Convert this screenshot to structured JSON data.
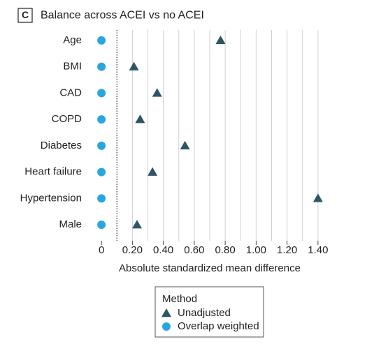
{
  "chart_data": {
    "type": "dot",
    "panel_label": "C",
    "title": "Balance across ACEI vs no ACEI",
    "categories": [
      "Age",
      "BMI",
      "CAD",
      "COPD",
      "Diabetes",
      "Heart failure",
      "Hypertension",
      "Male"
    ],
    "series": [
      {
        "name": "Unadjusted",
        "marker": "triangle",
        "color": "#2e5566",
        "values": [
          0.77,
          0.21,
          0.36,
          0.25,
          0.54,
          0.33,
          1.4,
          0.23
        ]
      },
      {
        "name": "Overlap weighted",
        "marker": "circle",
        "color": "#2aa6de",
        "values": [
          0,
          0,
          0,
          0,
          0,
          0,
          0,
          0
        ]
      }
    ],
    "xlabel": "Absolute standardized mean difference",
    "xlim": [
      -0.1,
      1.5
    ],
    "xticks": [
      0,
      {
        "value": 0.2,
        "label": "0.20"
      },
      {
        "value": 0.4,
        "label": "0.40"
      },
      {
        "value": 0.6,
        "label": "0.60"
      },
      {
        "value": 0.8,
        "label": "0.80"
      },
      {
        "value": 1.0,
        "label": "1.00"
      },
      {
        "value": 1.2,
        "label": "1.20"
      },
      {
        "value": 1.4,
        "label": "1.40"
      }
    ],
    "xminorticks": [
      0.3,
      0.5,
      0.7,
      0.9,
      1.1,
      1.3
    ],
    "reference_line": 0.1,
    "grid": true,
    "legend_title": "Method",
    "legend_position": "bottom"
  }
}
